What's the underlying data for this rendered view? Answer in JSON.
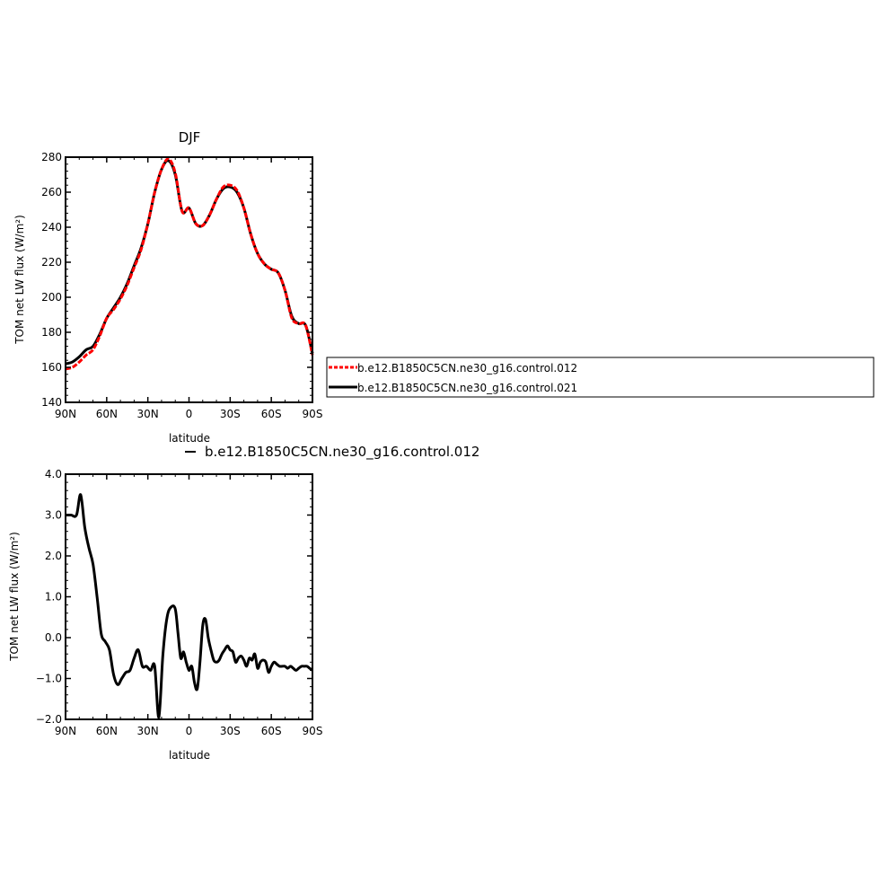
{
  "chart_data": [
    {
      "type": "line",
      "title": "DJF",
      "xlabel": "latitude",
      "ylabel": "TOM net LW flux (W/m²)",
      "ylim": [
        140,
        280
      ],
      "yticks": [
        "140",
        "160",
        "180",
        "200",
        "220",
        "240",
        "260",
        "280"
      ],
      "xlim": [
        -90,
        90
      ],
      "xticks": [
        {
          "v": -90,
          "label": "90N"
        },
        {
          "v": -60,
          "label": "60N"
        },
        {
          "v": -30,
          "label": "30N"
        },
        {
          "v": 0,
          "label": "0"
        },
        {
          "v": 30,
          "label": "30S"
        },
        {
          "v": 60,
          "label": "60S"
        },
        {
          "v": 90,
          "label": "90S"
        }
      ],
      "series": [
        {
          "name": "b.e12.B1850C5CN.ne30_g16.control.012",
          "color": "#ff0000",
          "dash": "dashed",
          "x": [
            -90,
            -85,
            -80,
            -75,
            -70,
            -65,
            -60,
            -55,
            -50,
            -45,
            -40,
            -35,
            -30,
            -25,
            -20,
            -15,
            -10,
            -5,
            0,
            5,
            10,
            15,
            20,
            25,
            30,
            35,
            40,
            45,
            50,
            55,
            60,
            65,
            70,
            75,
            80,
            85,
            90
          ],
          "y": [
            159,
            160,
            163,
            167,
            170,
            178,
            188,
            193,
            199,
            207,
            217,
            227,
            242,
            260,
            273,
            279,
            271,
            249,
            251,
            242,
            241,
            247,
            256,
            263,
            264,
            261,
            251,
            236,
            225,
            219,
            216,
            214,
            204,
            188,
            185,
            184,
            167
          ]
        },
        {
          "name": "b.e12.B1850C5CN.ne30_g16.control.021",
          "color": "#000000",
          "dash": "solid",
          "x": [
            -90,
            -85,
            -80,
            -75,
            -70,
            -65,
            -60,
            -55,
            -50,
            -45,
            -40,
            -35,
            -30,
            -25,
            -20,
            -15,
            -10,
            -5,
            0,
            5,
            10,
            15,
            20,
            25,
            30,
            35,
            40,
            45,
            50,
            55,
            60,
            65,
            70,
            75,
            80,
            85,
            90
          ],
          "y": [
            162,
            163,
            166,
            170,
            172,
            179,
            188,
            194,
            200,
            208,
            218,
            228,
            242,
            260,
            273,
            278,
            270,
            249,
            251,
            242,
            241,
            247,
            256,
            262,
            263,
            260,
            251,
            236,
            225,
            219,
            216,
            214,
            204,
            189,
            185,
            184,
            168
          ]
        }
      ],
      "legend": "right"
    },
    {
      "type": "line",
      "title": "b.e12.B1850C5CN.ne30_g16.control.012",
      "xlabel": "latitude",
      "ylabel": "TOM net LW flux (W/m²)",
      "ylim": [
        -2.0,
        4.0
      ],
      "yticks": [
        "−2.0",
        "−1.0",
        "0.0",
        "1.0",
        "2.0",
        "3.0",
        "4.0"
      ],
      "xlim": [
        -90,
        90
      ],
      "xticks": [
        {
          "v": -90,
          "label": "90N"
        },
        {
          "v": -60,
          "label": "60N"
        },
        {
          "v": -30,
          "label": "30N"
        },
        {
          "v": 0,
          "label": "0"
        },
        {
          "v": 30,
          "label": "30S"
        },
        {
          "v": 60,
          "label": "60S"
        },
        {
          "v": 90,
          "label": "90S"
        }
      ],
      "series": [
        {
          "color": "#000000",
          "x": [
            -90,
            -86,
            -82,
            -79,
            -76,
            -73,
            -70,
            -67,
            -64,
            -61,
            -58,
            -55,
            -52,
            -49,
            -46,
            -43,
            -40,
            -37,
            -34,
            -31,
            -28,
            -25,
            -22,
            -19,
            -16,
            -13,
            -10,
            -8,
            -6,
            -4,
            -2,
            0,
            2,
            4,
            6,
            8,
            10,
            12,
            14,
            16,
            18,
            20,
            22,
            24,
            26,
            28,
            30,
            32,
            34,
            36,
            38,
            40,
            42,
            44,
            46,
            48,
            50,
            52,
            54,
            56,
            58,
            60,
            62,
            64,
            66,
            68,
            70,
            72,
            74,
            76,
            78,
            80,
            82,
            84,
            86,
            88,
            90
          ],
          "y": [
            3.0,
            3.0,
            3.0,
            3.5,
            2.7,
            2.2,
            1.8,
            1.0,
            0.1,
            -0.1,
            -0.3,
            -0.9,
            -1.15,
            -1.0,
            -0.85,
            -0.8,
            -0.5,
            -0.3,
            -0.7,
            -0.7,
            -0.8,
            -0.7,
            -1.95,
            -0.4,
            0.5,
            0.75,
            0.7,
            0.1,
            -0.5,
            -0.35,
            -0.6,
            -0.8,
            -0.7,
            -1.1,
            -1.25,
            -0.6,
            0.3,
            0.45,
            0.0,
            -0.3,
            -0.55,
            -0.6,
            -0.55,
            -0.4,
            -0.3,
            -0.2,
            -0.3,
            -0.35,
            -0.6,
            -0.5,
            -0.45,
            -0.55,
            -0.7,
            -0.5,
            -0.55,
            -0.4,
            -0.75,
            -0.6,
            -0.55,
            -0.6,
            -0.85,
            -0.7,
            -0.6,
            -0.65,
            -0.7,
            -0.7,
            -0.7,
            -0.75,
            -0.7,
            -0.75,
            -0.8,
            -0.75,
            -0.7,
            -0.7,
            -0.7,
            -0.75,
            -0.8
          ]
        }
      ]
    }
  ]
}
